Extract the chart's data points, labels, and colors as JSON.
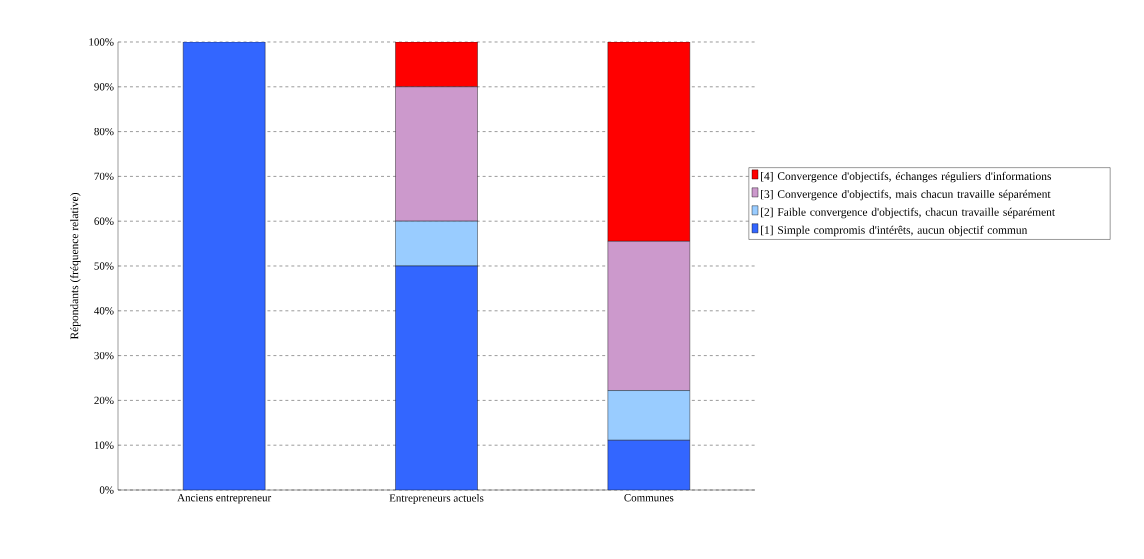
{
  "chart_data": {
    "type": "bar",
    "stacked": true,
    "ylabel": "Répondants (fréquence relative)",
    "categories": [
      "Anciens entrepreneur",
      "Entrepreneurs actuels",
      "Communes"
    ],
    "series": [
      {
        "name": "[1] Simple compromis d'intérêts, aucun objectif commun",
        "color": "#3366ff",
        "values": [
          100,
          50,
          11.1
        ]
      },
      {
        "name": "[2] Faible convergence d'objectifs, chacun travaille séparément",
        "color": "#99ccff",
        "values": [
          0,
          10,
          11.1
        ]
      },
      {
        "name": "[3] Convergence d'objectifs, mais chacun travaille séparément",
        "color": "#cc99cc",
        "values": [
          0,
          30,
          33.3
        ]
      },
      {
        "name": "[4] Convergence d'objectifs, échanges réguliers d'informations",
        "color": "#ff0000",
        "values": [
          0,
          10,
          44.5
        ]
      }
    ],
    "ylim": [
      0,
      100
    ],
    "yticks": [
      {
        "value": 0,
        "label": "0%"
      },
      {
        "value": 10,
        "label": "10%"
      },
      {
        "value": 20,
        "label": "20%"
      },
      {
        "value": 30,
        "label": "30%"
      },
      {
        "value": 40,
        "label": "40%"
      },
      {
        "value": 50,
        "label": "50%"
      },
      {
        "value": 60,
        "label": "60%"
      },
      {
        "value": 70,
        "label": "70%"
      },
      {
        "value": 80,
        "label": "80%"
      },
      {
        "value": 90,
        "label": "90%"
      },
      {
        "value": 100,
        "label": "100%"
      }
    ],
    "grid": "y",
    "legend": "right"
  }
}
